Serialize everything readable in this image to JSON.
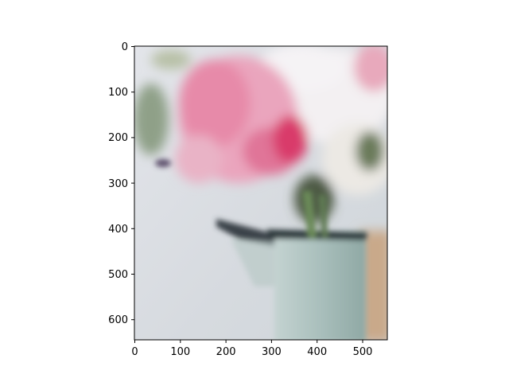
{
  "image": {
    "description_colors": {
      "background_wall": "#d9dde2",
      "flower_pink": "#e8789c",
      "flower_magenta": "#d93b6a",
      "hydrangea_white": "#f1eef0",
      "leaf_green": "#5f7a52",
      "vase_teal": "#a8bfbb",
      "vase_spout": "#9fb5b6",
      "board_tan": "#c9a98a"
    }
  },
  "axes": {
    "x_ticks": [
      "0",
      "100",
      "200",
      "300",
      "400",
      "500"
    ],
    "y_ticks": [
      "0",
      "100",
      "200",
      "300",
      "400",
      "500",
      "600"
    ]
  },
  "chart_data": {
    "type": "image",
    "x_range": [
      0,
      555
    ],
    "y_range": [
      0,
      645
    ],
    "y_inverted": true,
    "x_ticks": [
      0,
      100,
      200,
      300,
      400,
      500
    ],
    "y_ticks": [
      0,
      100,
      200,
      300,
      400,
      500,
      600
    ]
  }
}
